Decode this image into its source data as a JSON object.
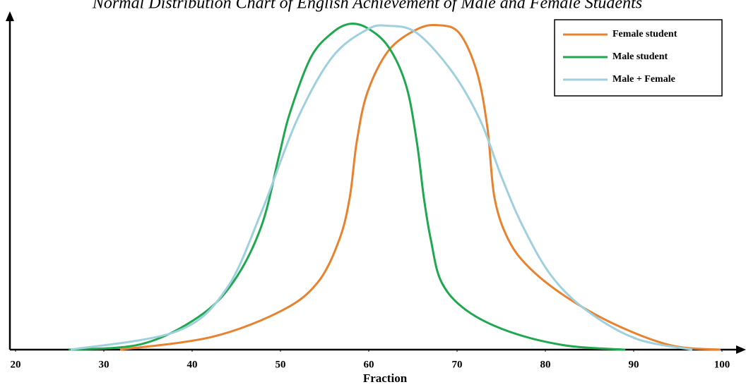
{
  "chart_data": {
    "type": "line",
    "title": "Normal Distribution Chart of English Achievement of Male and Female Students",
    "x_label": "Fraction",
    "xlim": [
      20,
      100
    ],
    "xticks": [
      20,
      30,
      40,
      50,
      60,
      70,
      80,
      90,
      100
    ],
    "ylim": [
      0,
      1.03
    ],
    "legend": "upper right",
    "series": [
      {
        "name": "Female student",
        "color": "#e8822e",
        "x": [
          31.84,
          42.24,
          50.24,
          54.24,
          56.64,
          57.84,
          58.64,
          59.84,
          62.24,
          65.44,
          67.84,
          70.24,
          72.24,
          73.44,
          74.24,
          75.84,
          78.24,
          82.24,
          87.84,
          94.24,
          99.84
        ],
        "values": [
          0,
          0.039,
          0.121,
          0.207,
          0.336,
          0.466,
          0.638,
          0.789,
          0.918,
          0.983,
          0.996,
          0.972,
          0.853,
          0.681,
          0.466,
          0.336,
          0.25,
          0.164,
          0.078,
          0.013,
          0
        ]
      },
      {
        "name": "Male student",
        "color": "#1fa84f",
        "x": [
          26.0,
          34.24,
          40.64,
          44.64,
          47.84,
          49.84,
          51.04,
          53.44,
          55.84,
          57.84,
          59.84,
          62.24,
          64.24,
          65.44,
          66.24,
          67.04,
          68.24,
          71.04,
          75.84,
          82.24,
          89.04
        ],
        "values": [
          0,
          0.017,
          0.099,
          0.207,
          0.379,
          0.595,
          0.724,
          0.897,
          0.972,
          1.0,
          0.987,
          0.929,
          0.81,
          0.638,
          0.466,
          0.336,
          0.207,
          0.121,
          0.056,
          0.013,
          0
        ]
      },
      {
        "name": "Male + Female",
        "color": "#9fd0de",
        "x": [
          26.24,
          38.24,
          43.84,
          47.84,
          51.84,
          55.84,
          59.84,
          62.24,
          65.44,
          69.44,
          72.64,
          75.04,
          77.44,
          80.64,
          84.64,
          90.24,
          96.64
        ],
        "values": [
          0,
          0.056,
          0.185,
          0.422,
          0.703,
          0.897,
          0.983,
          0.994,
          0.972,
          0.853,
          0.703,
          0.53,
          0.379,
          0.228,
          0.121,
          0.034,
          0
        ]
      }
    ]
  }
}
